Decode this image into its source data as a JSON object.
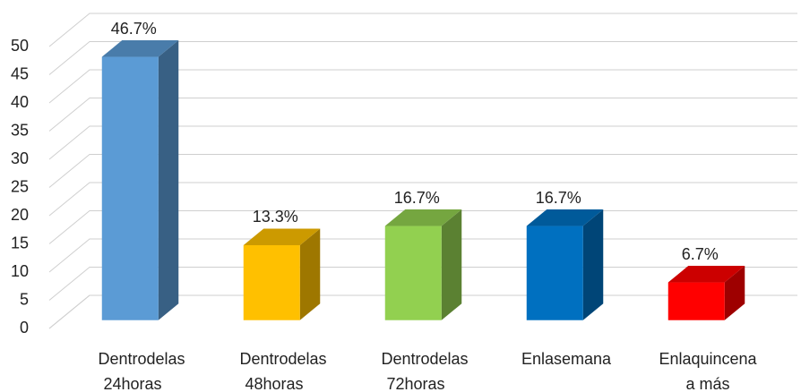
{
  "chart_data": {
    "type": "bar3d",
    "categories": [
      [
        "Dentrodelas",
        "24horas"
      ],
      [
        "Dentrodelas",
        "48horas"
      ],
      [
        "Dentrodelas",
        "72horas"
      ],
      [
        "Enlasemana"
      ],
      [
        "Enlaquincena",
        "a más"
      ]
    ],
    "values": [
      46.7,
      13.3,
      16.7,
      16.7,
      6.7
    ],
    "value_labels": [
      "46.7%",
      "13.3%",
      "16.7%",
      "16.7%",
      "6.7%"
    ],
    "colors": [
      "#5b9bd5",
      "#ffc000",
      "#92d050",
      "#0070c0",
      "#ff0000"
    ],
    "ylim": [
      0,
      50
    ],
    "yticks": [
      0,
      5,
      10,
      15,
      20,
      25,
      30,
      35,
      40,
      45,
      50
    ],
    "grid": true
  }
}
